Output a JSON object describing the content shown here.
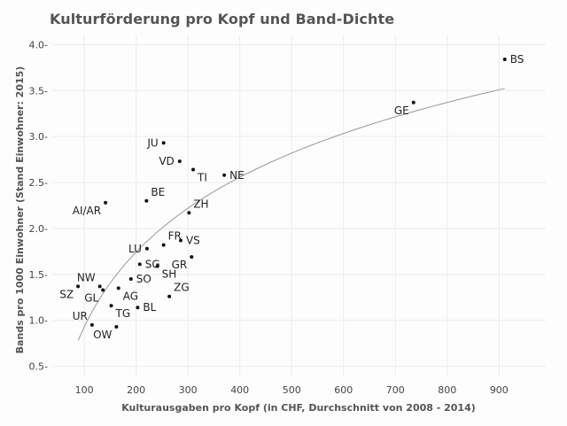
{
  "chart_data": {
    "type": "scatter",
    "title": "Kulturförderung pro Kopf und Band-Dichte",
    "xlabel": "Kulturausgaben pro Kopf (in CHF, Durchschnitt von 2008 - 2014)",
    "ylabel": "Bands pro 1000 Einwohner (Stand Einwohner: 2015)",
    "xlim": [
      40,
      990
    ],
    "ylim": [
      0.4,
      4.1
    ],
    "xticks": [
      100,
      200,
      300,
      400,
      500,
      600,
      700,
      800,
      900
    ],
    "yticks": [
      0.5,
      1.0,
      1.5,
      2.0,
      2.5,
      3.0,
      3.5,
      4.0
    ],
    "ytick_labels": [
      "0.5",
      "1.0",
      "1.5",
      "2.0",
      "2.5",
      "3.0",
      "3.5",
      "4.0"
    ],
    "grid": true,
    "trend_line": "logarithmic",
    "points": [
      {
        "label": "BS",
        "x": 911,
        "y": 3.84,
        "anchor": "right"
      },
      {
        "label": "GE",
        "x": 735,
        "y": 3.37,
        "anchor": "below-left"
      },
      {
        "label": "JU",
        "x": 253,
        "y": 2.93,
        "anchor": "left"
      },
      {
        "label": "VD",
        "x": 284,
        "y": 2.73,
        "anchor": "left"
      },
      {
        "label": "TI",
        "x": 310,
        "y": 2.64,
        "anchor": "below-right"
      },
      {
        "label": "NE",
        "x": 370,
        "y": 2.58,
        "anchor": "right"
      },
      {
        "label": "BE",
        "x": 220,
        "y": 2.3,
        "anchor": "above-right"
      },
      {
        "label": "AI/AR",
        "x": 141,
        "y": 2.28,
        "anchor": "below-left"
      },
      {
        "label": "ZH",
        "x": 302,
        "y": 2.17,
        "anchor": "above-right"
      },
      {
        "label": "FR",
        "x": 253,
        "y": 1.82,
        "anchor": "above-right"
      },
      {
        "label": "VS",
        "x": 286,
        "y": 1.87,
        "anchor": "right"
      },
      {
        "label": "LU",
        "x": 221,
        "y": 1.78,
        "anchor": "left"
      },
      {
        "label": "SG",
        "x": 207,
        "y": 1.61,
        "anchor": "right"
      },
      {
        "label": "GR",
        "x": 307,
        "y": 1.69,
        "anchor": "below-left"
      },
      {
        "label": "SH",
        "x": 241,
        "y": 1.59,
        "anchor": "below-right"
      },
      {
        "label": "NW",
        "x": 130,
        "y": 1.37,
        "anchor": "above-left"
      },
      {
        "label": "SO",
        "x": 190,
        "y": 1.45,
        "anchor": "right"
      },
      {
        "label": "SZ",
        "x": 88,
        "y": 1.37,
        "anchor": "below-left"
      },
      {
        "label": "GL",
        "x": 136,
        "y": 1.33,
        "anchor": "below-left"
      },
      {
        "label": "AG",
        "x": 166,
        "y": 1.35,
        "anchor": "below-right"
      },
      {
        "label": "ZG",
        "x": 264,
        "y": 1.26,
        "anchor": "above-right"
      },
      {
        "label": "BL",
        "x": 203,
        "y": 1.14,
        "anchor": "right"
      },
      {
        "label": "TG",
        "x": 152,
        "y": 1.16,
        "anchor": "below-right"
      },
      {
        "label": "UR",
        "x": 115,
        "y": 0.95,
        "anchor": "above-left"
      },
      {
        "label": "OW",
        "x": 162,
        "y": 0.93,
        "anchor": "below-left"
      }
    ]
  }
}
